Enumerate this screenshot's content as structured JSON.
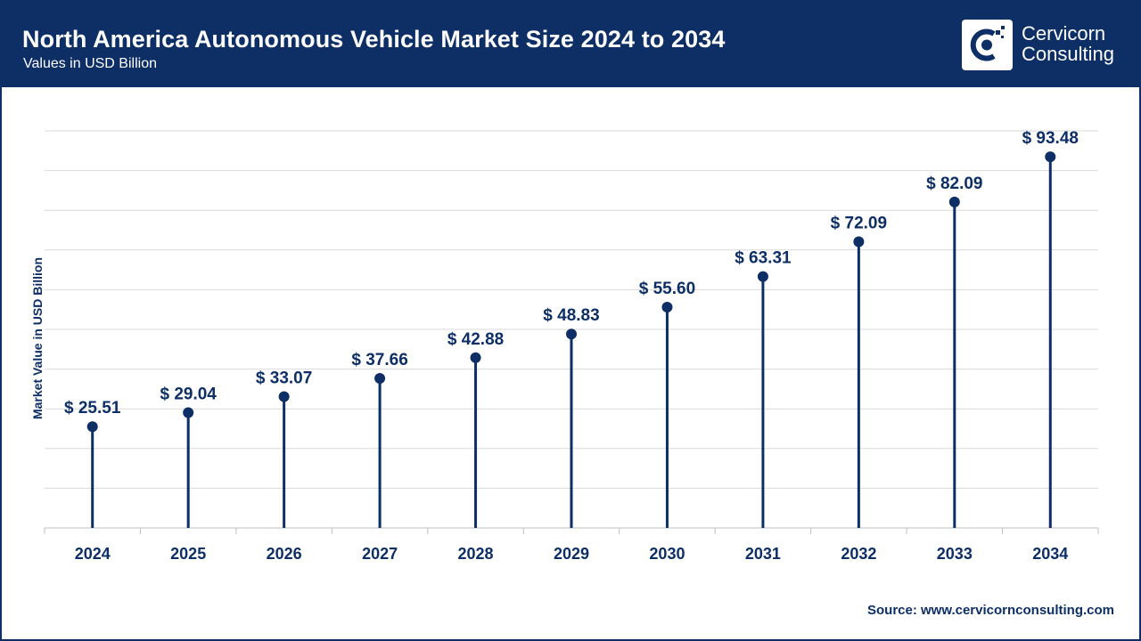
{
  "header": {
    "title": "North America Autonomous Vehicle Market Size 2024 to 2034",
    "subtitle": "Values in USD Billion"
  },
  "brand": {
    "logo_icon": "cervicorn-c-icon",
    "name_line1": "Cervicorn",
    "name_line2": "Consulting"
  },
  "footer": {
    "source": "Source: www.cervicornconsulting.com"
  },
  "colors": {
    "primary": "#0d2f66",
    "grid": "#d9d9d9",
    "background": "#ffffff"
  },
  "chart_data": {
    "type": "lollipop",
    "title": "North America Autonomous Vehicle Market Size 2024 to 2034",
    "subtitle": "Values in USD Billion",
    "xlabel": "",
    "ylabel": "Market Value in USD Billion",
    "categories": [
      "2024",
      "2025",
      "2026",
      "2027",
      "2028",
      "2029",
      "2030",
      "2031",
      "2032",
      "2033",
      "2034"
    ],
    "values": [
      25.51,
      29.04,
      33.07,
      37.66,
      42.88,
      48.83,
      55.6,
      63.31,
      72.09,
      82.09,
      93.48
    ],
    "labels": [
      "$ 25.51",
      "$ 29.04",
      "$ 33.07",
      "$ 37.66",
      "$ 42.88",
      "$ 48.83",
      "$ 55.60",
      "$ 63.31",
      "$ 72.09",
      "$ 82.09",
      "$ 93.48"
    ],
    "ylim": [
      0,
      100
    ],
    "grid": true,
    "ytick_count": 10,
    "legend": "none"
  }
}
